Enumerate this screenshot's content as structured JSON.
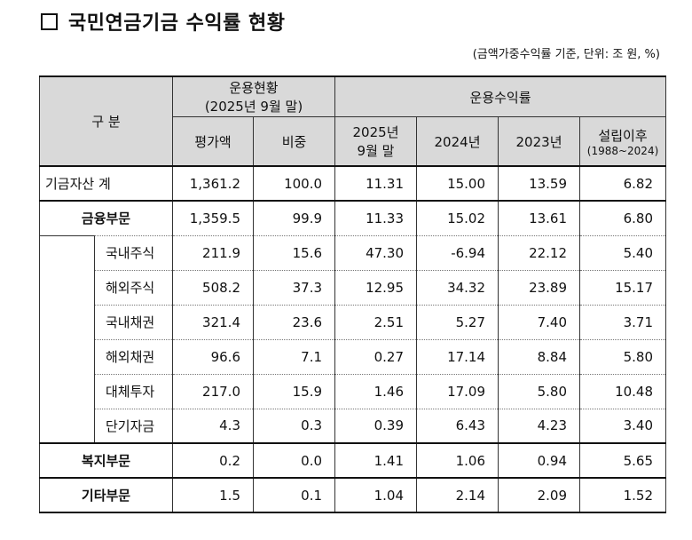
{
  "title": "국민연금기금 수익률 현황",
  "note": "(금액가중수익률 기준, 단위: 조 원, %)",
  "header": {
    "category": "구 분",
    "holdings_group": "운용현황",
    "holdings_group_sub": "(2025년 9월 말)",
    "returns_group": "운용수익률",
    "eval_amount": "평가액",
    "share": "비중",
    "col_2025_line1": "2025년",
    "col_2025_line2": "9월 말",
    "col_2024": "2024년",
    "col_2023": "2023년",
    "col_since_line1": "설립이후",
    "col_since_line2": "(1988~2024)"
  },
  "rows": [
    {
      "label": "기금자산 계",
      "values": [
        "1,361.2",
        "100.0",
        "11.31",
        "15.00",
        "13.59",
        "6.82"
      ]
    },
    {
      "label": "금융부문",
      "values": [
        "1,359.5",
        "99.9",
        "11.33",
        "15.02",
        "13.61",
        "6.80"
      ]
    },
    {
      "label": "국내주식",
      "values": [
        "211.9",
        "15.6",
        "47.30",
        "-6.94",
        "22.12",
        "5.40"
      ]
    },
    {
      "label": "해외주식",
      "values": [
        "508.2",
        "37.3",
        "12.95",
        "34.32",
        "23.89",
        "15.17"
      ]
    },
    {
      "label": "국내채권",
      "values": [
        "321.4",
        "23.6",
        "2.51",
        "5.27",
        "7.40",
        "3.71"
      ]
    },
    {
      "label": "해외채권",
      "values": [
        "96.6",
        "7.1",
        "0.27",
        "17.14",
        "8.84",
        "5.80"
      ]
    },
    {
      "label": "대체투자",
      "values": [
        "217.0",
        "15.9",
        "1.46",
        "17.09",
        "5.80",
        "10.48"
      ]
    },
    {
      "label": "단기자금",
      "values": [
        "4.3",
        "0.3",
        "0.39",
        "6.43",
        "4.23",
        "3.40"
      ]
    },
    {
      "label": "복지부문",
      "values": [
        "0.2",
        "0.0",
        "1.41",
        "1.06",
        "0.94",
        "5.65"
      ]
    },
    {
      "label": "기타부문",
      "values": [
        "1.5",
        "0.1",
        "1.04",
        "2.14",
        "2.09",
        "1.52"
      ]
    }
  ]
}
